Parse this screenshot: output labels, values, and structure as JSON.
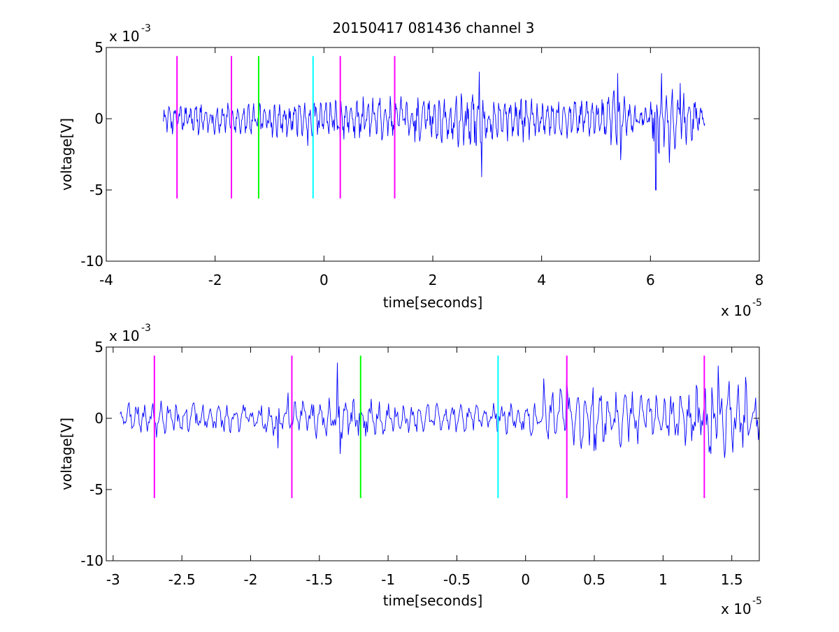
{
  "figure_title": "20150417 081436 channel 3",
  "colors": {
    "signal": "#0000ff",
    "magenta": "#ff00ff",
    "green": "#00ff00",
    "cyan": "#00ffff",
    "axis": "#000000"
  },
  "chart_data": [
    {
      "type": "line",
      "title": "20150417 081436 channel 3",
      "xlabel": "time[seconds]",
      "ylabel": "voltage[V]",
      "x_exponent": "x 10",
      "x_exponent_power": "-5",
      "y_exponent": "x 10",
      "y_exponent_power": "-3",
      "xlim": [
        -4,
        8
      ],
      "ylim": [
        -10,
        5
      ],
      "xticks": [
        -4,
        -2,
        0,
        2,
        4,
        6,
        8
      ],
      "xtick_labels": [
        "-4",
        "-2",
        "0",
        "2",
        "4",
        "6",
        "8"
      ],
      "yticks": [
        -10,
        -5,
        0,
        5
      ],
      "ytick_labels": [
        "-10",
        "-5",
        "0",
        "5"
      ],
      "grid": false,
      "signal": {
        "x_start": -2.95,
        "x_end": 7.0,
        "base": 0,
        "envelope": [
          [
            -2.95,
            1.0
          ],
          [
            -2.8,
            1.1
          ],
          [
            -2.0,
            1.2
          ],
          [
            -1.0,
            1.4
          ],
          [
            0.0,
            1.4
          ],
          [
            1.0,
            1.7
          ],
          [
            2.0,
            1.7
          ],
          [
            2.8,
            2.6
          ],
          [
            3.0,
            1.8
          ],
          [
            4.0,
            1.6
          ],
          [
            5.0,
            1.3
          ],
          [
            5.4,
            2.2
          ],
          [
            5.6,
            1.2
          ],
          [
            5.9,
            1.0
          ],
          [
            6.1,
            2.8
          ],
          [
            6.3,
            2.4
          ],
          [
            6.6,
            2.2
          ],
          [
            7.0,
            0.6
          ]
        ],
        "spikes": [
          [
            2.85,
            3.3
          ],
          [
            2.9,
            -4.1
          ],
          [
            5.4,
            3.2
          ],
          [
            5.45,
            -2.9
          ],
          [
            6.1,
            -5.0
          ],
          [
            6.2,
            3.2
          ],
          [
            6.35,
            -3.1
          ],
          [
            6.55,
            2.5
          ],
          [
            -0.3,
            -1.9
          ],
          [
            0.3,
            -1.6
          ]
        ]
      },
      "markers": [
        {
          "x": -2.7,
          "y_from": -5.6,
          "y_to": 4.4,
          "color": "#ff00ff"
        },
        {
          "x": -1.7,
          "y_from": -5.6,
          "y_to": 4.4,
          "color": "#ff00ff"
        },
        {
          "x": -1.2,
          "y_from": -5.6,
          "y_to": 4.4,
          "color": "#00ff00"
        },
        {
          "x": -0.2,
          "y_from": -5.6,
          "y_to": 4.4,
          "color": "#00ffff"
        },
        {
          "x": 0.3,
          "y_from": -5.6,
          "y_to": 4.4,
          "color": "#ff00ff"
        },
        {
          "x": 1.3,
          "y_from": -5.6,
          "y_to": 4.4,
          "color": "#ff00ff"
        }
      ]
    },
    {
      "type": "line",
      "xlabel": "time[seconds]",
      "ylabel": "voltage[V]",
      "x_exponent": "x 10",
      "x_exponent_power": "-5",
      "y_exponent": "x 10",
      "y_exponent_power": "-3",
      "xlim": [
        -3.05,
        1.7
      ],
      "ylim": [
        -10,
        5
      ],
      "xticks": [
        -3,
        -2.5,
        -2,
        -1.5,
        -1,
        -0.5,
        0,
        0.5,
        1,
        1.5
      ],
      "xtick_labels": [
        "-3",
        "-2.5",
        "-2",
        "-1.5",
        "-1",
        "-0.5",
        "0",
        "0.5",
        "1",
        "1.5"
      ],
      "yticks": [
        -10,
        -5,
        0,
        5
      ],
      "ytick_labels": [
        "-10",
        "-5",
        "0",
        "5"
      ],
      "grid": false,
      "signal": {
        "x_start": -2.95,
        "x_end": 1.7,
        "base": 0,
        "envelope": [
          [
            -2.95,
            1.0
          ],
          [
            -2.7,
            1.5
          ],
          [
            -2.0,
            1.1
          ],
          [
            -1.7,
            1.4
          ],
          [
            -1.4,
            1.6
          ],
          [
            -1.0,
            1.3
          ],
          [
            -0.5,
            1.0
          ],
          [
            0.0,
            1.2
          ],
          [
            0.2,
            2.2
          ],
          [
            0.5,
            2.4
          ],
          [
            0.8,
            2.0
          ],
          [
            1.0,
            1.6
          ],
          [
            1.2,
            2.4
          ],
          [
            1.4,
            3.3
          ],
          [
            1.6,
            2.4
          ],
          [
            1.7,
            1.8
          ]
        ],
        "spikes": [
          [
            -1.37,
            3.9
          ],
          [
            -1.35,
            -2.5
          ],
          [
            -1.73,
            1.8
          ],
          [
            -1.8,
            -2.1
          ],
          [
            0.13,
            2.8
          ],
          [
            0.3,
            2.8
          ],
          [
            0.5,
            -2.3
          ],
          [
            1.4,
            3.7
          ],
          [
            1.35,
            -2.5
          ],
          [
            1.6,
            2.9
          ]
        ]
      },
      "markers": [
        {
          "x": -2.7,
          "y_from": -5.6,
          "y_to": 4.4,
          "color": "#ff00ff"
        },
        {
          "x": -1.7,
          "y_from": -5.6,
          "y_to": 4.4,
          "color": "#ff00ff"
        },
        {
          "x": -1.2,
          "y_from": -5.6,
          "y_to": 4.4,
          "color": "#00ff00"
        },
        {
          "x": -0.2,
          "y_from": -5.6,
          "y_to": 4.4,
          "color": "#00ffff"
        },
        {
          "x": 0.3,
          "y_from": -5.6,
          "y_to": 4.4,
          "color": "#ff00ff"
        },
        {
          "x": 1.3,
          "y_from": -5.6,
          "y_to": 4.4,
          "color": "#ff00ff"
        }
      ]
    }
  ]
}
